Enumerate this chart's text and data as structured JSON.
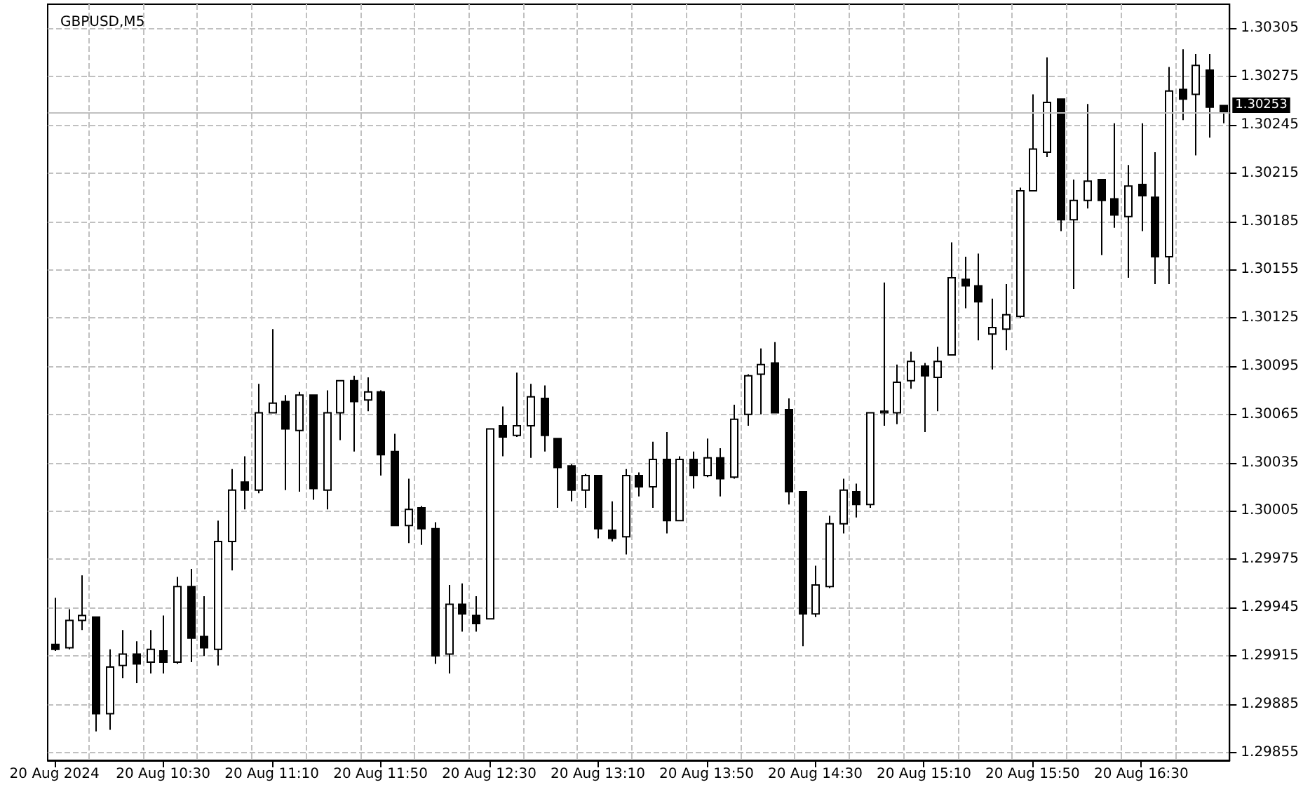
{
  "chart_data": {
    "type": "candlestick",
    "title": "GBPUSD,M5",
    "categories": [
      "20 Aug 2024",
      null,
      null,
      null,
      null,
      null,
      null,
      null,
      "20 Aug 10:30",
      null,
      null,
      null,
      null,
      null,
      null,
      null,
      "20 Aug 11:10",
      null,
      null,
      null,
      null,
      null,
      null,
      null,
      "20 Aug 11:50",
      null,
      null,
      null,
      null,
      null,
      null,
      null,
      "20 Aug 12:30",
      null,
      null,
      null,
      null,
      null,
      null,
      null,
      "20 Aug 13:10",
      null,
      null,
      null,
      null,
      null,
      null,
      null,
      "20 Aug 13:50",
      null,
      null,
      null,
      null,
      null,
      null,
      null,
      "20 Aug 14:30",
      null,
      null,
      null,
      null,
      null,
      null,
      null,
      "20 Aug 15:10",
      null,
      null,
      null,
      null,
      null,
      null,
      null,
      "20 Aug 15:50",
      null,
      null,
      null,
      null,
      null,
      null,
      null,
      "20 Aug 16:30",
      null,
      null,
      null,
      null,
      null,
      null
    ],
    "ohlc": [
      [
        1.29922,
        1.29951,
        1.29918,
        1.29919
      ],
      [
        1.2992,
        1.29944,
        1.29919,
        1.29937
      ],
      [
        1.29937,
        1.29965,
        1.29931,
        1.2994
      ],
      [
        1.29939,
        1.29939,
        1.29868,
        1.29879
      ],
      [
        1.29879,
        1.29919,
        1.29869,
        1.29908
      ],
      [
        1.29909,
        1.29931,
        1.29901,
        1.29916
      ],
      [
        1.29916,
        1.29924,
        1.29898,
        1.2991
      ],
      [
        1.29911,
        1.29931,
        1.29904,
        1.29919
      ],
      [
        1.29918,
        1.2994,
        1.29904,
        1.29911
      ],
      [
        1.29911,
        1.29964,
        1.2991,
        1.29958
      ],
      [
        1.29958,
        1.29969,
        1.29911,
        1.29926
      ],
      [
        1.29927,
        1.29952,
        1.29915,
        1.2992
      ],
      [
        1.29919,
        1.29999,
        1.29909,
        1.29986
      ],
      [
        1.29986,
        1.30031,
        1.29968,
        1.30018
      ],
      [
        1.30023,
        1.30039,
        1.30006,
        1.30018
      ],
      [
        1.30018,
        1.30084,
        1.30016,
        1.30066
      ],
      [
        1.30066,
        1.30118,
        1.30066,
        1.30072
      ],
      [
        1.30073,
        1.30077,
        1.30018,
        1.30056
      ],
      [
        1.30055,
        1.30079,
        1.30017,
        1.30077
      ],
      [
        1.30077,
        1.30077,
        1.30012,
        1.30019
      ],
      [
        1.30018,
        1.3008,
        1.30006,
        1.30066
      ],
      [
        1.30066,
        1.30086,
        1.30049,
        1.30086
      ],
      [
        1.30086,
        1.30089,
        1.30042,
        1.30073
      ],
      [
        1.30074,
        1.30088,
        1.30067,
        1.30079
      ],
      [
        1.30079,
        1.3008,
        1.30027,
        1.3004
      ],
      [
        1.30042,
        1.30053,
        1.29996,
        1.29996
      ],
      [
        1.29996,
        1.30025,
        1.29985,
        1.30006
      ],
      [
        1.30007,
        1.30008,
        1.29984,
        1.29994
      ],
      [
        1.29994,
        1.29998,
        1.2991,
        1.29915
      ],
      [
        1.29916,
        1.29959,
        1.29904,
        1.29947
      ],
      [
        1.29947,
        1.2996,
        1.2993,
        1.29941
      ],
      [
        1.2994,
        1.29952,
        1.2993,
        1.29935
      ],
      [
        1.29938,
        1.30056,
        1.29938,
        1.30056
      ],
      [
        1.30058,
        1.3007,
        1.30039,
        1.30051
      ],
      [
        1.30052,
        1.30091,
        1.30051,
        1.30058
      ],
      [
        1.30058,
        1.30084,
        1.30038,
        1.30076
      ],
      [
        1.30075,
        1.30083,
        1.30042,
        1.30052
      ],
      [
        1.3005,
        1.3005,
        1.30007,
        1.30032
      ],
      [
        1.30033,
        1.30034,
        1.30011,
        1.30018
      ],
      [
        1.30018,
        1.30028,
        1.30007,
        1.30027
      ],
      [
        1.30027,
        1.30027,
        1.29988,
        1.29994
      ],
      [
        1.29993,
        1.30011,
        1.29986,
        1.29988
      ],
      [
        1.29989,
        1.30031,
        1.29978,
        1.30027
      ],
      [
        1.30027,
        1.30029,
        1.30014,
        1.3002
      ],
      [
        1.3002,
        1.30048,
        1.30007,
        1.30037
      ],
      [
        1.30037,
        1.30054,
        1.29991,
        1.29999
      ],
      [
        1.29999,
        1.30039,
        1.29999,
        1.30037
      ],
      [
        1.30037,
        1.30042,
        1.30019,
        1.30027
      ],
      [
        1.30027,
        1.3005,
        1.30026,
        1.30038
      ],
      [
        1.30038,
        1.30044,
        1.30014,
        1.30025
      ],
      [
        1.30026,
        1.30071,
        1.30025,
        1.30062
      ],
      [
        1.30065,
        1.3009,
        1.30058,
        1.30089
      ],
      [
        1.3009,
        1.30106,
        1.30065,
        1.30096
      ],
      [
        1.30097,
        1.3011,
        1.30066,
        1.30066
      ],
      [
        1.30068,
        1.30075,
        1.30009,
        1.30017
      ],
      [
        1.30017,
        1.30017,
        1.29921,
        1.29941
      ],
      [
        1.29941,
        1.29971,
        1.29939,
        1.29959
      ],
      [
        1.29958,
        1.30002,
        1.29957,
        1.29997
      ],
      [
        1.29997,
        1.30025,
        1.29991,
        1.30018
      ],
      [
        1.30017,
        1.30022,
        1.30001,
        1.30009
      ],
      [
        1.30009,
        1.30066,
        1.30007,
        1.30066
      ],
      [
        1.30066,
        1.30147,
        1.30058,
        1.30067
      ],
      [
        1.30066,
        1.30096,
        1.30059,
        1.30085
      ],
      [
        1.30086,
        1.30104,
        1.30081,
        1.30098
      ],
      [
        1.30095,
        1.30097,
        1.30054,
        1.30089
      ],
      [
        1.30088,
        1.30107,
        1.30067,
        1.30098
      ],
      [
        1.30102,
        1.30172,
        1.30102,
        1.3015
      ],
      [
        1.30149,
        1.30163,
        1.30131,
        1.30145
      ],
      [
        1.30145,
        1.30165,
        1.30111,
        1.30135
      ],
      [
        1.30115,
        1.30137,
        1.30093,
        1.30119
      ],
      [
        1.30118,
        1.30146,
        1.30105,
        1.30127
      ],
      [
        1.30126,
        1.30206,
        1.30125,
        1.30204
      ],
      [
        1.30204,
        1.30264,
        1.30204,
        1.3023
      ],
      [
        1.30228,
        1.30287,
        1.30225,
        1.30259
      ],
      [
        1.30261,
        1.30261,
        1.30179,
        1.30186
      ],
      [
        1.30186,
        1.30211,
        1.30143,
        1.30198
      ],
      [
        1.30198,
        1.30258,
        1.30193,
        1.3021
      ],
      [
        1.30211,
        1.30211,
        1.30164,
        1.30198
      ],
      [
        1.30199,
        1.30246,
        1.30181,
        1.30189
      ],
      [
        1.30188,
        1.3022,
        1.3015,
        1.30207
      ],
      [
        1.30208,
        1.30246,
        1.30179,
        1.30201
      ],
      [
        1.302,
        1.30228,
        1.30146,
        1.30163
      ],
      [
        1.30163,
        1.30281,
        1.30146,
        1.30266
      ],
      [
        1.30267,
        1.30292,
        1.30248,
        1.30261
      ],
      [
        1.30264,
        1.30289,
        1.30226,
        1.30282
      ],
      [
        1.30279,
        1.30289,
        1.30237,
        1.30256
      ],
      [
        1.30257,
        1.30257,
        1.30246,
        1.30253
      ]
    ],
    "ylim": [
      1.2985,
      1.3032
    ],
    "yticks": [
      1.29855,
      1.29885,
      1.29915,
      1.29945,
      1.29975,
      1.30005,
      1.30035,
      1.30065,
      1.30095,
      1.30125,
      1.30155,
      1.30185,
      1.30215,
      1.30245,
      1.30275,
      1.30305
    ],
    "ref_lines": [
      {
        "axis": "y",
        "value": 1.30253,
        "label": "1.30253",
        "color": "#c0c0c0"
      }
    ],
    "grid": true
  }
}
